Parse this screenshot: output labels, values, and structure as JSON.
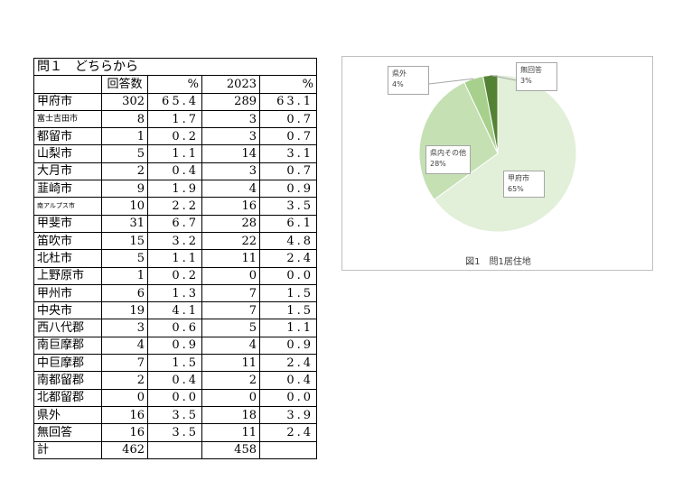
{
  "table": {
    "title": "問１　どちらから",
    "headers": [
      "",
      "回答数",
      "%",
      "2023",
      "%"
    ],
    "rows": [
      {
        "name": "甲府市",
        "count": "302",
        "pct": "65.4",
        "count2023": "289",
        "pct2023": "63.1",
        "size": "normal"
      },
      {
        "name": "富士吉田市",
        "count": "8",
        "pct": "1.7",
        "count2023": "3",
        "pct2023": "0.7",
        "size": "small"
      },
      {
        "name": "都留市",
        "count": "1",
        "pct": "0.2",
        "count2023": "3",
        "pct2023": "0.7",
        "size": "normal"
      },
      {
        "name": "山梨市",
        "count": "5",
        "pct": "1.1",
        "count2023": "14",
        "pct2023": "3.1",
        "size": "normal"
      },
      {
        "name": "大月市",
        "count": "2",
        "pct": "0.4",
        "count2023": "3",
        "pct2023": "0.7",
        "size": "normal"
      },
      {
        "name": "韮崎市",
        "count": "9",
        "pct": "1.9",
        "count2023": "4",
        "pct2023": "0.9",
        "size": "normal"
      },
      {
        "name": "南アルプス市",
        "count": "10",
        "pct": "2.2",
        "count2023": "16",
        "pct2023": "3.5",
        "size": "tiny"
      },
      {
        "name": "甲斐市",
        "count": "31",
        "pct": "6.7",
        "count2023": "28",
        "pct2023": "6.1",
        "size": "normal"
      },
      {
        "name": "笛吹市",
        "count": "15",
        "pct": "3.2",
        "count2023": "22",
        "pct2023": "4.8",
        "size": "normal"
      },
      {
        "name": "北杜市",
        "count": "5",
        "pct": "1.1",
        "count2023": "11",
        "pct2023": "2.4",
        "size": "normal"
      },
      {
        "name": "上野原市",
        "count": "1",
        "pct": "0.2",
        "count2023": "0",
        "pct2023": "0.0",
        "size": "normal"
      },
      {
        "name": "甲州市",
        "count": "6",
        "pct": "1.3",
        "count2023": "7",
        "pct2023": "1.5",
        "size": "normal"
      },
      {
        "name": "中央市",
        "count": "19",
        "pct": "4.1",
        "count2023": "7",
        "pct2023": "1.5",
        "size": "normal"
      },
      {
        "name": "西八代郡",
        "count": "3",
        "pct": "0.6",
        "count2023": "5",
        "pct2023": "1.1",
        "size": "normal"
      },
      {
        "name": "南巨摩郡",
        "count": "4",
        "pct": "0.9",
        "count2023": "4",
        "pct2023": "0.9",
        "size": "normal"
      },
      {
        "name": "中巨摩郡",
        "count": "7",
        "pct": "1.5",
        "count2023": "11",
        "pct2023": "2.4",
        "size": "normal"
      },
      {
        "name": "南都留郡",
        "count": "2",
        "pct": "0.4",
        "count2023": "2",
        "pct2023": "0.4",
        "size": "normal"
      },
      {
        "name": "北都留郡",
        "count": "0",
        "pct": "0.0",
        "count2023": "0",
        "pct2023": "0.0",
        "size": "normal"
      },
      {
        "name": "県外",
        "count": "16",
        "pct": "3.5",
        "count2023": "18",
        "pct2023": "3.9",
        "size": "normal"
      },
      {
        "name": "無回答",
        "count": "16",
        "pct": "3.5",
        "count2023": "11",
        "pct2023": "2.4",
        "size": "normal"
      }
    ],
    "total": {
      "name": "計",
      "count": "462",
      "pct": "",
      "count2023": "458",
      "pct2023": ""
    }
  },
  "chart_data": {
    "type": "pie",
    "caption": "図1　問1居住地",
    "slices": [
      {
        "label": "甲府市",
        "value": 65,
        "value_label": "65%",
        "color": "#e2efd9"
      },
      {
        "label": "県内その他",
        "value": 28,
        "value_label": "28%",
        "color": "#c5e0b3"
      },
      {
        "label": "県外",
        "value": 4,
        "value_label": "4%",
        "color": "#a8d08d"
      },
      {
        "label": "無回答",
        "value": 3,
        "value_label": "3%",
        "color": "#548235"
      }
    ],
    "start": "12 o'clock, clockwise"
  }
}
